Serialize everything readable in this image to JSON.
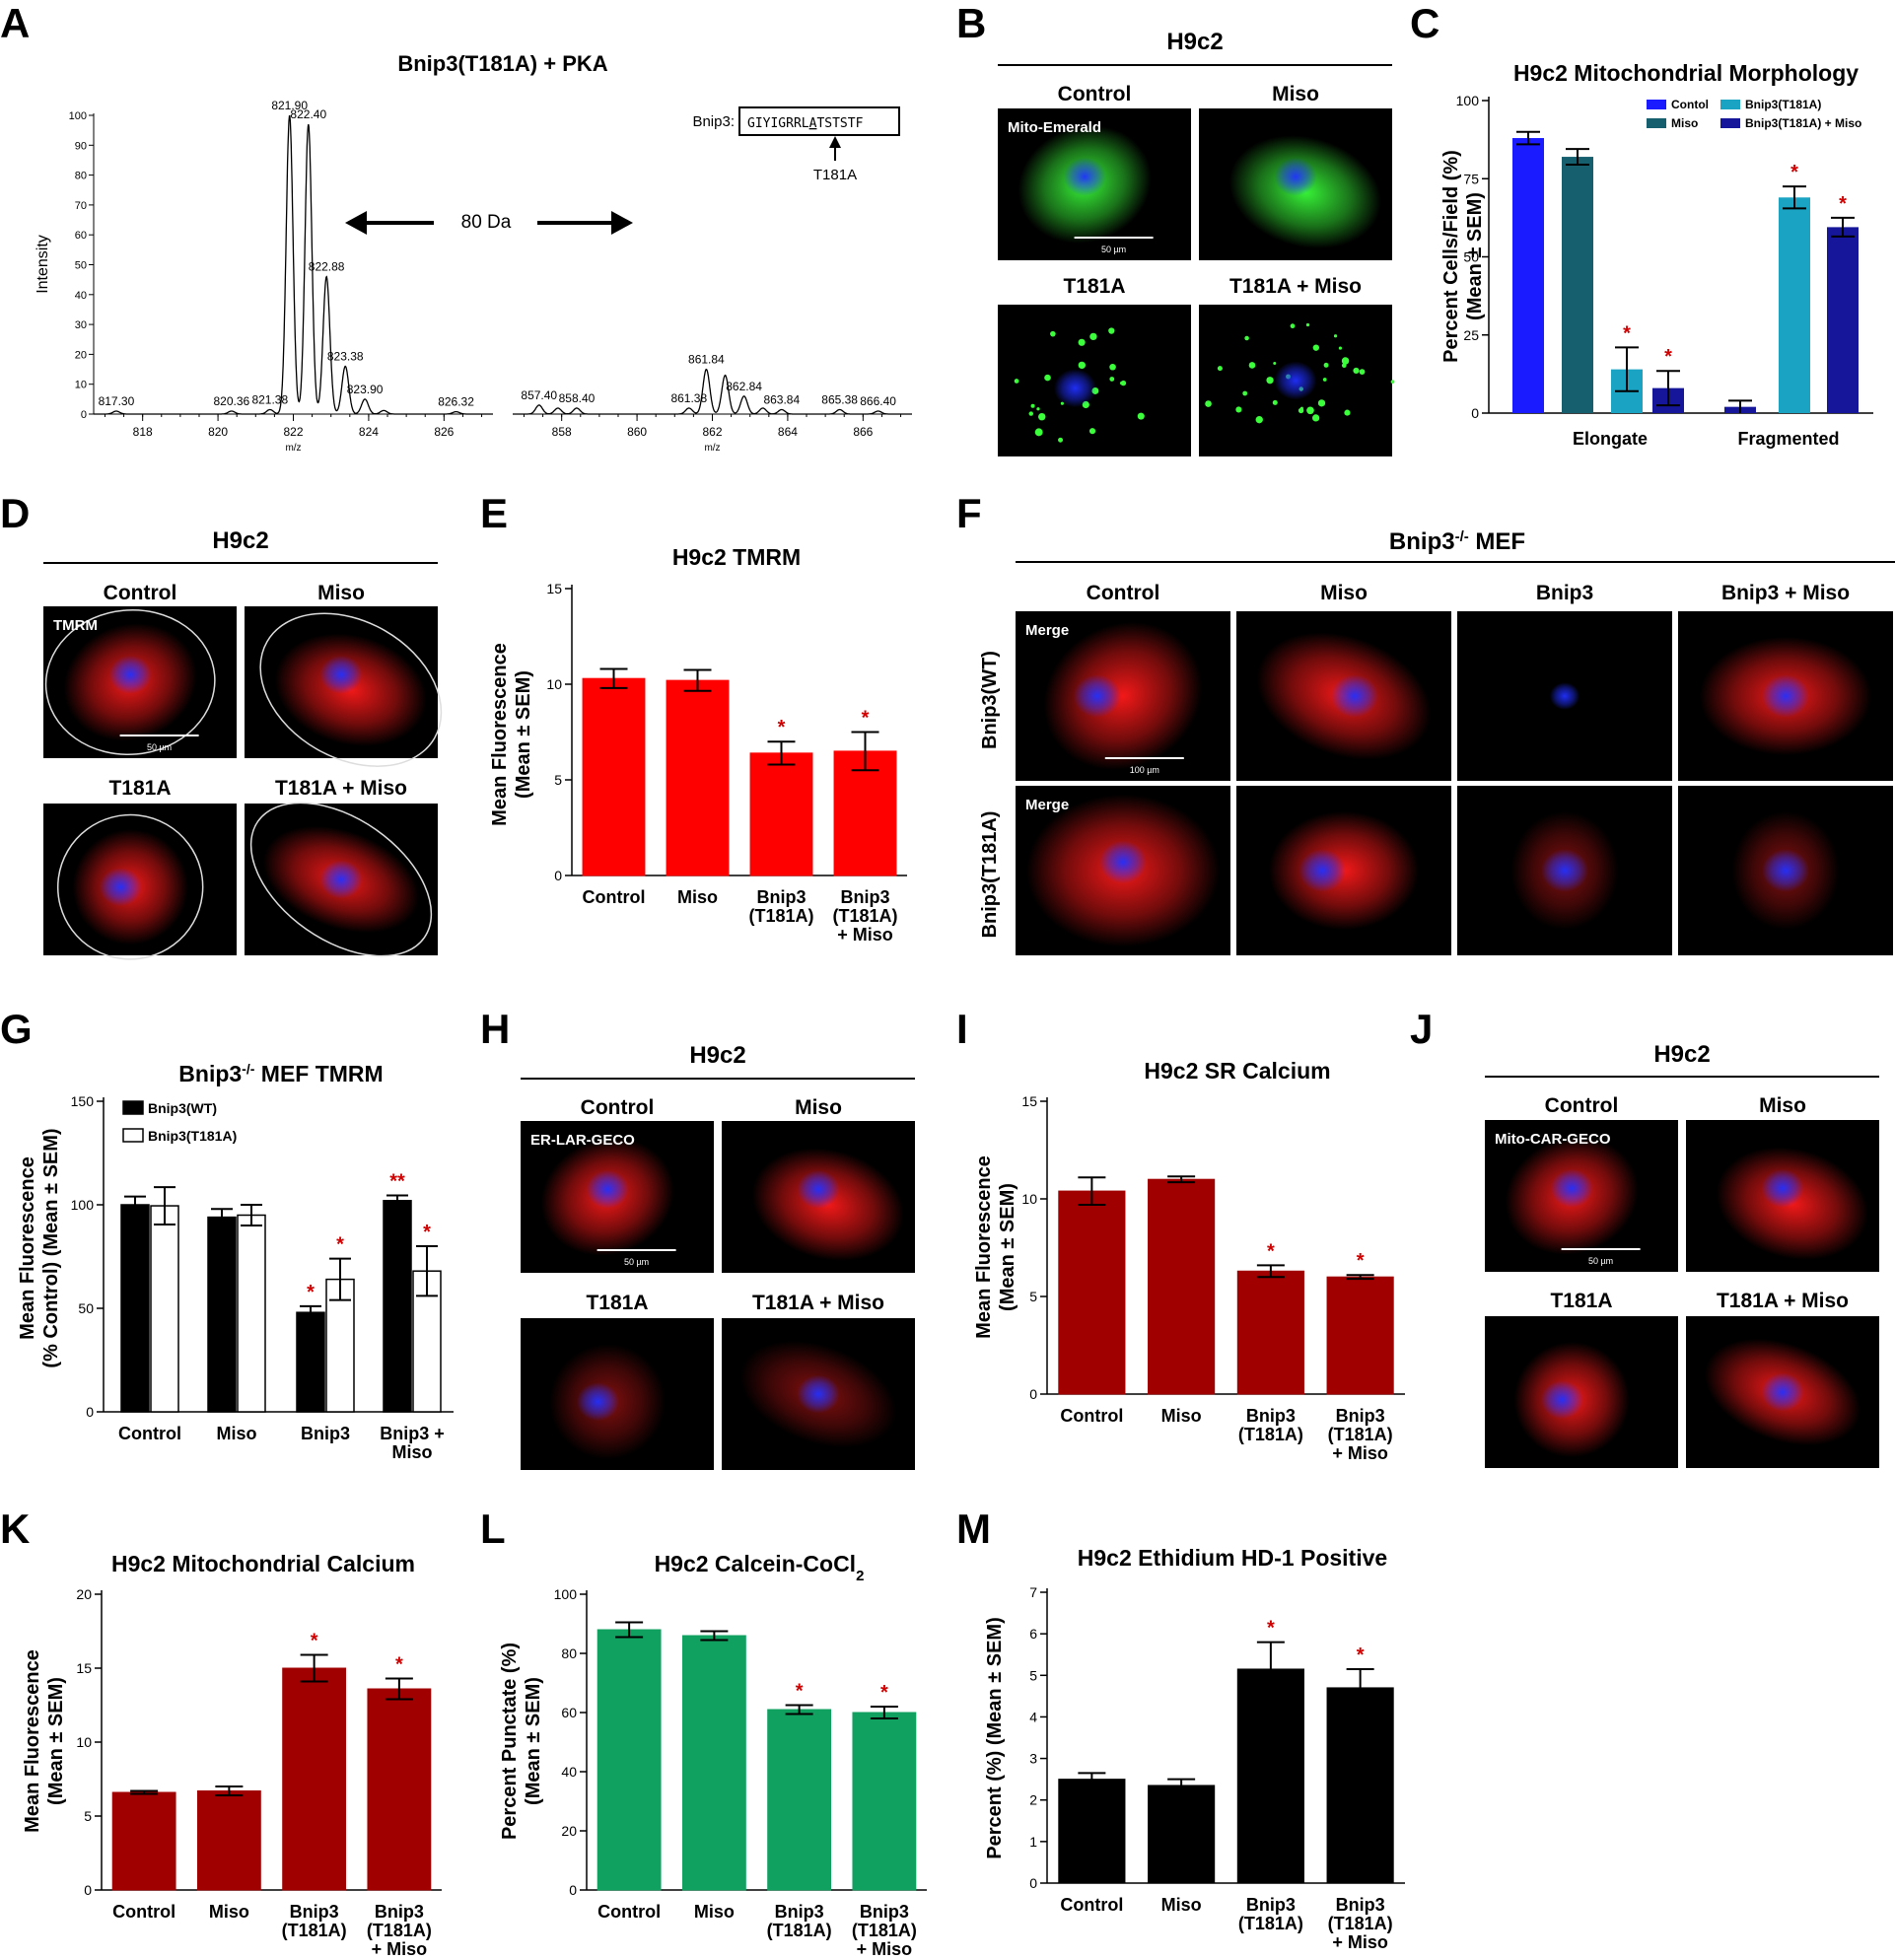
{
  "panel_letters": [
    "A",
    "B",
    "C",
    "D",
    "E",
    "F",
    "G",
    "H",
    "I",
    "J",
    "K",
    "L",
    "M"
  ],
  "panel_a": {
    "title": "Bnip3(T181A) + PKA",
    "ylabel": "Intensity",
    "xlabel": "m/z",
    "yticks": [
      "0",
      "10",
      "20",
      "30",
      "40",
      "50",
      "60",
      "70",
      "80",
      "90",
      "100"
    ],
    "left_xticks": [
      "818",
      "820",
      "822",
      "824",
      "826"
    ],
    "right_xticks": [
      "858",
      "860",
      "862",
      "864",
      "866"
    ],
    "left_peaks": [
      {
        "mz": 817.3,
        "label": "817.30",
        "rel": 1
      },
      {
        "mz": 820.36,
        "label": "820.36",
        "rel": 1
      },
      {
        "mz": 821.38,
        "label": "821.38",
        "rel": 1.5
      },
      {
        "mz": 821.9,
        "label": "821.90",
        "rel": 100
      },
      {
        "mz": 822.4,
        "label": "822.40",
        "rel": 97
      },
      {
        "mz": 822.88,
        "label": "822.88",
        "rel": 46
      },
      {
        "mz": 823.38,
        "label": "823.38",
        "rel": 16
      },
      {
        "mz": 823.9,
        "label": "823.90",
        "rel": 5
      },
      {
        "mz": 824.4,
        "label": "",
        "rel": 1.2
      },
      {
        "mz": 826.32,
        "label": "826.32",
        "rel": 0.8
      }
    ],
    "right_peaks": [
      {
        "mz": 857.4,
        "label": "857.40",
        "rel": 3
      },
      {
        "mz": 857.9,
        "label": "",
        "rel": 2
      },
      {
        "mz": 858.4,
        "label": "858.40",
        "rel": 2
      },
      {
        "mz": 861.38,
        "label": "861.38",
        "rel": 2
      },
      {
        "mz": 861.84,
        "label": "861.84",
        "rel": 15
      },
      {
        "mz": 862.34,
        "label": "",
        "rel": 13
      },
      {
        "mz": 862.84,
        "label": "862.84",
        "rel": 6
      },
      {
        "mz": 863.34,
        "label": "",
        "rel": 2
      },
      {
        "mz": 863.84,
        "label": "863.84",
        "rel": 1.5
      },
      {
        "mz": 865.38,
        "label": "865.38",
        "rel": 1.5
      },
      {
        "mz": 866.4,
        "label": "866.40",
        "rel": 1
      }
    ],
    "arrow_label": "80 Da",
    "seq_label": "Bnip3:",
    "seq_pre": "GIYIGRRL",
    "seq_site": "A",
    "seq_post": "TSTSTF",
    "mut_label": "T181A"
  },
  "panel_b": {
    "header": "H9c2",
    "col_labels": [
      "Control",
      "Miso"
    ],
    "row2_labels": [
      "T181A",
      "T181A + Miso"
    ],
    "stain": "Mito-Emerald",
    "scale": "50 µm"
  },
  "panel_d": {
    "header": "H9c2",
    "col_labels": [
      "Control",
      "Miso"
    ],
    "row2_labels": [
      "T181A",
      "T181A + Miso"
    ],
    "stain": "TMRM",
    "scale": "50 µm"
  },
  "panel_f": {
    "header": "Bnip3",
    "header_sup": "-/-",
    "header_post": " MEF",
    "col_labels": [
      "Control",
      "Miso",
      "Bnip3",
      "Bnip3 + Miso"
    ],
    "row_labels": [
      "Bnip3(WT)",
      "Bnip3(T181A)"
    ],
    "stain": "Merge",
    "scale": "100 µm"
  },
  "panel_h": {
    "header": "H9c2",
    "col_labels": [
      "Control",
      "Miso"
    ],
    "row2_labels": [
      "T181A",
      "T181A + Miso"
    ],
    "stain": "ER-LAR-GECO",
    "scale": "50 µm"
  },
  "panel_j": {
    "header": "H9c2",
    "col_labels": [
      "Control",
      "Miso"
    ],
    "row2_labels": [
      "T181A",
      "T181A + Miso"
    ],
    "stain": "Mito-CAR-GECO",
    "scale": "50 µm"
  },
  "chart_data": [
    {
      "id": "C",
      "type": "bar",
      "title": "H9c2 Mitochondrial Morphology",
      "ylabel": "Percent Cells/Field (%)\n(Mean ± SEM)",
      "categories": [
        "Elongate",
        "Fragmented"
      ],
      "ylim": [
        0,
        100
      ],
      "yticks": [
        0,
        25,
        50,
        75,
        100
      ],
      "legend": "top-right",
      "series": [
        {
          "name": "Contol",
          "color": "#1b1bff",
          "values": [
            88,
            0
          ],
          "errors": [
            2,
            0
          ],
          "sig": [
            "",
            ""
          ]
        },
        {
          "name": "Miso",
          "color": "#155f6e",
          "values": [
            82,
            0
          ],
          "errors": [
            2.5,
            0
          ],
          "sig": [
            "",
            ""
          ]
        },
        {
          "name": "Bnip3(T181A)",
          "color": "#1aa3c2",
          "values": [
            14,
            69
          ],
          "errors": [
            7,
            3.5
          ],
          "sig": [
            "*",
            "*"
          ]
        },
        {
          "name": "Bnip3(T181A) + Miso",
          "color": "#16169a",
          "values": [
            8,
            2
          ],
          "errors": [
            5.5,
            2
          ],
          "sig": [
            "*",
            ""
          ]
        },
        {
          "name": "",
          "color": "#16169a",
          "values": [
            0,
            59.5
          ],
          "errors": [
            0,
            3
          ],
          "sig": [
            "",
            "*"
          ]
        }
      ]
    },
    {
      "id": "E",
      "type": "bar",
      "title": "H9c2 TMRM",
      "ylabel": "Mean Fluorescence\n(Mean ± SEM)",
      "categories": [
        "Control",
        "Miso",
        "Bnip3\n(T181A)",
        "Bnip3\n(T181A)\n+ Miso"
      ],
      "ylim": [
        0,
        15
      ],
      "yticks": [
        0,
        5,
        10,
        15
      ],
      "color": "#ff0000",
      "values": [
        10.3,
        10.2,
        6.4,
        6.5
      ],
      "errors": [
        0.5,
        0.55,
        0.6,
        1.0
      ],
      "sig": [
        "",
        "",
        "*",
        "*"
      ]
    },
    {
      "id": "G",
      "type": "bar",
      "title": "Bnip3",
      "title_sup": "-/-",
      "title_post": " MEF TMRM",
      "ylabel": "Mean Fluorescence\n(% Control) (Mean ± SEM)",
      "categories": [
        "Control",
        "Miso",
        "Bnip3",
        "Bnip3 +\nMiso"
      ],
      "ylim": [
        0,
        150
      ],
      "yticks": [
        0,
        50,
        100,
        150
      ],
      "legend": "top-left",
      "series": [
        {
          "name": "Bnip3(WT)",
          "color": "#000000",
          "values": [
            100,
            94,
            48,
            102
          ],
          "errors": [
            4,
            4,
            3,
            2.5
          ],
          "sig": [
            "",
            "",
            "*",
            "**"
          ]
        },
        {
          "name": "Bnip3(T181A)",
          "color": "#ffffff",
          "values": [
            99.5,
            95,
            64,
            68
          ],
          "errors": [
            9,
            5,
            10,
            12
          ],
          "sig": [
            "",
            "",
            "*",
            "*"
          ]
        }
      ]
    },
    {
      "id": "I",
      "type": "bar",
      "title": "H9c2 SR Calcium",
      "ylabel": "Mean Fluorescence\n(Mean ± SEM)",
      "categories": [
        "Control",
        "Miso",
        "Bnip3\n(T181A)",
        "Bnip3\n(T181A)\n+ Miso"
      ],
      "ylim": [
        0,
        15
      ],
      "yticks": [
        0,
        5,
        10,
        15
      ],
      "color": "#a00000",
      "values": [
        10.4,
        11.0,
        6.3,
        6.0
      ],
      "errors": [
        0.7,
        0.15,
        0.3,
        0.1
      ],
      "sig": [
        "",
        "",
        "*",
        "*"
      ]
    },
    {
      "id": "K",
      "type": "bar",
      "title": "H9c2 Mitochondrial Calcium",
      "ylabel": "Mean Fluorescence\n(Mean ± SEM)",
      "categories": [
        "Control",
        "Miso",
        "Bnip3\n(T181A)",
        "Bnip3\n(T181A)\n+ Miso"
      ],
      "ylim": [
        0,
        20
      ],
      "yticks": [
        0,
        5,
        10,
        15,
        20
      ],
      "color": "#a00000",
      "values": [
        6.6,
        6.7,
        15.0,
        13.6
      ],
      "errors": [
        0.1,
        0.3,
        0.9,
        0.7
      ],
      "sig": [
        "",
        "",
        "*",
        "*"
      ]
    },
    {
      "id": "L",
      "type": "bar",
      "title": "H9c2 Calcein-CoCl",
      "title_sub": "2",
      "ylabel": "Percent Punctate (%)\n(Mean ± SEM)",
      "categories": [
        "Control",
        "Miso",
        "Bnip3\n(T181A)",
        "Bnip3\n(T181A)\n+ Miso"
      ],
      "ylim": [
        0,
        100
      ],
      "yticks": [
        0,
        20,
        40,
        60,
        80,
        100
      ],
      "color": "#10a060",
      "values": [
        88,
        86,
        61,
        60
      ],
      "errors": [
        2.5,
        1.5,
        1.5,
        2
      ],
      "sig": [
        "",
        "",
        "*",
        "*"
      ]
    },
    {
      "id": "M",
      "type": "bar",
      "title": "H9c2 Ethidium HD-1 Positive",
      "ylabel": "Percent (%) (Mean ± SEM)",
      "categories": [
        "Control",
        "Miso",
        "Bnip3\n(T181A)",
        "Bnip3\n(T181A)\n+ Miso"
      ],
      "ylim": [
        0,
        7
      ],
      "yticks": [
        0,
        1,
        2,
        3,
        4,
        5,
        6,
        7
      ],
      "color": "#000000",
      "values": [
        2.5,
        2.35,
        5.15,
        4.7
      ],
      "errors": [
        0.15,
        0.15,
        0.65,
        0.45
      ],
      "sig": [
        "",
        "",
        "*",
        "*"
      ]
    }
  ]
}
